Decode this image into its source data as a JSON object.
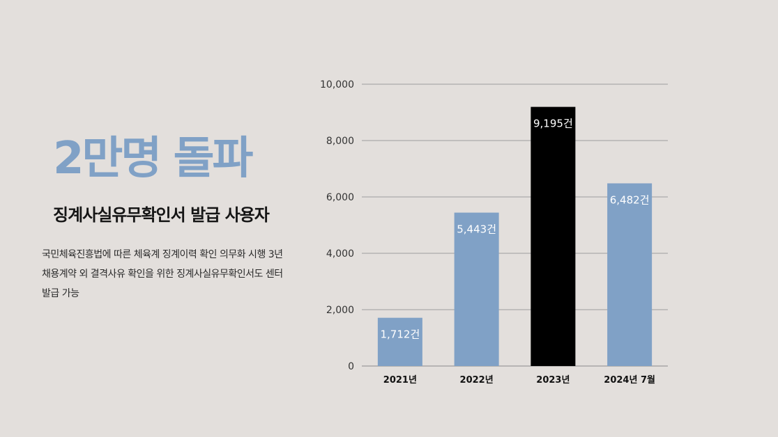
{
  "headline": "2만명 돌파",
  "subheadline": "징계사실유무확인서 발급 사용자",
  "description": [
    "국민체육진흥법에 따른 체육계 징계이력 확인 의무화 시행 3년",
    "채용계약 외 결격사유 확인을 위한 징계사실유무확인서도 센터",
    "발급 가능"
  ],
  "colors": {
    "background": "#e3dfdc",
    "bar": "#80a1c6",
    "highlight": "#000000",
    "headline": "#80a1c6"
  },
  "chart_data": {
    "type": "bar",
    "categories": [
      "2021년",
      "2022년",
      "2023년",
      "2024년 7월"
    ],
    "values": [
      1712,
      5443,
      9195,
      6482
    ],
    "data_labels": [
      "1,712건",
      "5,443건",
      "9,195건",
      "6,482건"
    ],
    "highlight_index": 2,
    "ylim": [
      0,
      10000
    ],
    "yticks": [
      0,
      2000,
      4000,
      6000,
      8000,
      10000
    ],
    "ytick_labels": [
      "0",
      "2,000",
      "4,000",
      "6,000",
      "8,000",
      "10,000"
    ],
    "grid": true,
    "legend": "none"
  }
}
